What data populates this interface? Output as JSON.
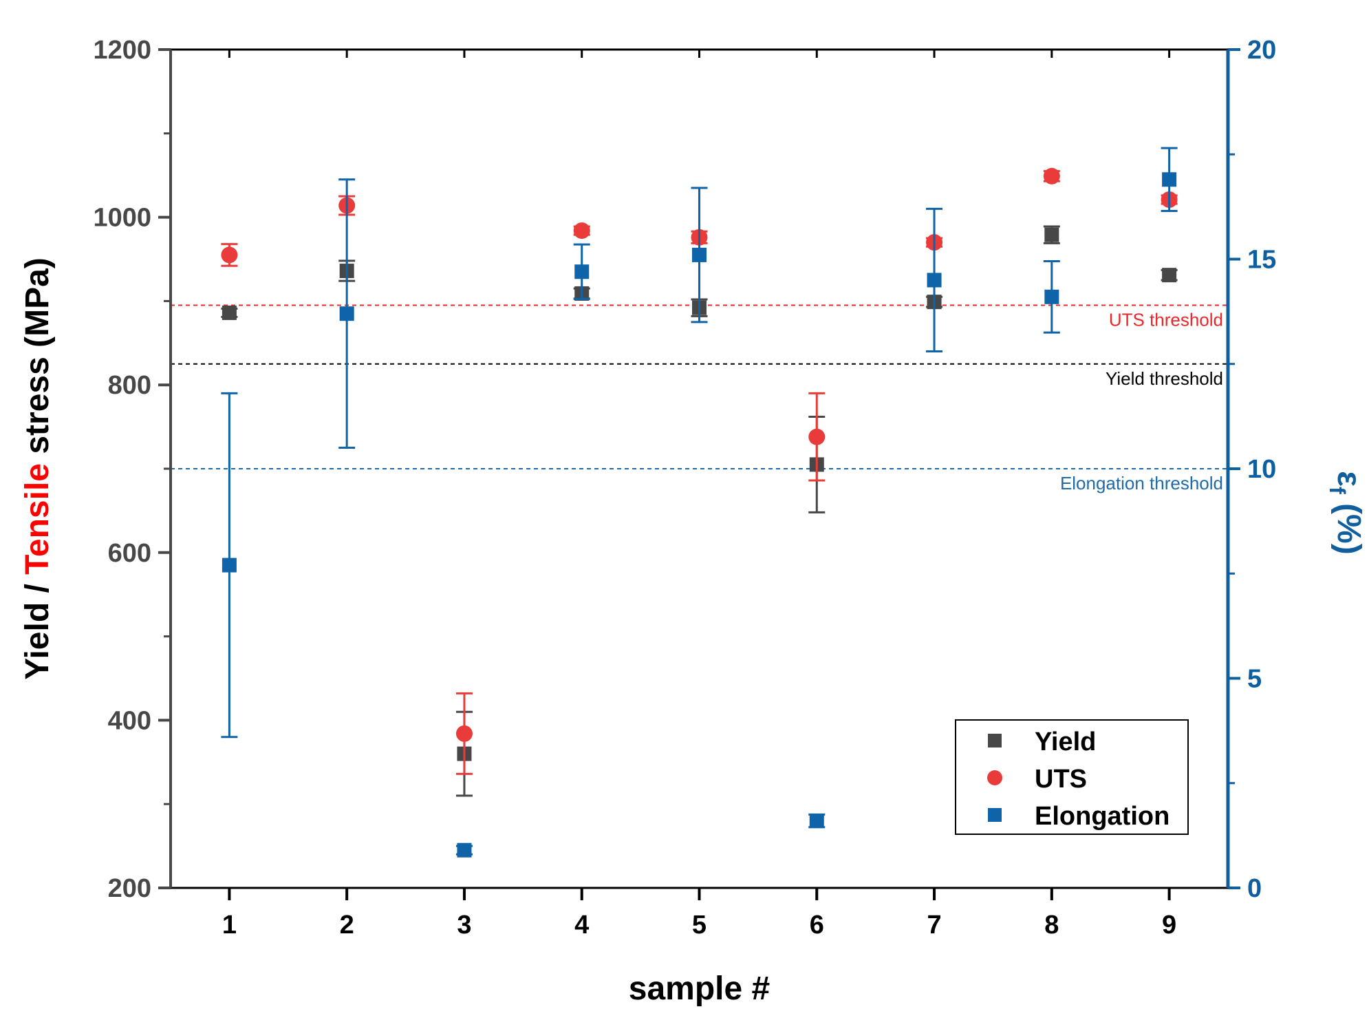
{
  "chart_data": {
    "type": "scatter",
    "title": "",
    "xlabel": "sample #",
    "ylabel_left": {
      "parts": [
        {
          "text": "Yield / ",
          "color": "#000000"
        },
        {
          "text": "Tensile",
          "color": "#ff0000"
        },
        {
          "text": " stress (MPa)",
          "color": "#000000"
        }
      ]
    },
    "ylabel_right": {
      "symbol": "ε",
      "subscript": "f",
      "suffix": " (%)",
      "color": "#0f5f9f"
    },
    "x_ticks": [
      "1",
      "2",
      "3",
      "4",
      "5",
      "6",
      "7",
      "8",
      "9"
    ],
    "xlim": [
      0.5,
      9.5
    ],
    "ylim_left": [
      200,
      1200
    ],
    "yticks_left": [
      "200",
      "400",
      "600",
      "800",
      "1000",
      "1200"
    ],
    "ylim_right": [
      0,
      20
    ],
    "yticks_right": [
      "0",
      "5",
      "10",
      "15",
      "20"
    ],
    "series": [
      {
        "name": "Yield",
        "axis": "left",
        "marker": "square",
        "color": "#474747",
        "x": [
          1,
          2,
          3,
          4,
          5,
          6,
          7,
          8,
          9
        ],
        "values": [
          886,
          936,
          360,
          909,
          892,
          705,
          899,
          979,
          931
        ],
        "errors": [
          5,
          12,
          50,
          6,
          10,
          57,
          6,
          10,
          6
        ]
      },
      {
        "name": "UTS",
        "axis": "left",
        "marker": "circle",
        "color": "#ea3b3b",
        "x": [
          1,
          2,
          3,
          4,
          5,
          6,
          7,
          8,
          9
        ],
        "values": [
          955,
          1014,
          384,
          984,
          976,
          738,
          970,
          1049,
          1021
        ],
        "errors": [
          13,
          11,
          48,
          5,
          7,
          52,
          5,
          6,
          5
        ]
      },
      {
        "name": "Elongation",
        "axis": "right",
        "marker": "square",
        "color": "#0f63a8",
        "x": [
          1,
          2,
          3,
          4,
          5,
          6,
          7,
          8,
          9
        ],
        "values": [
          7.7,
          13.7,
          0.9,
          14.7,
          15.1,
          1.6,
          14.5,
          14.1,
          16.9
        ],
        "errors": [
          4.1,
          3.2,
          0.1,
          0.65,
          1.6,
          0.15,
          1.7,
          0.85,
          0.75
        ]
      }
    ],
    "thresholds": [
      {
        "label": "UTS threshold",
        "axis": "left",
        "value": 895,
        "color": "#e8282a"
      },
      {
        "label": "Yield threshold",
        "axis": "left",
        "value": 825,
        "color": "#000000"
      },
      {
        "label": "Elongation threshold",
        "axis": "right",
        "value": 10,
        "color": "#1f6aaa"
      }
    ],
    "legend": {
      "position": "bottom-right",
      "entries": [
        "Yield",
        "UTS",
        "Elongation"
      ]
    },
    "grid": false
  }
}
